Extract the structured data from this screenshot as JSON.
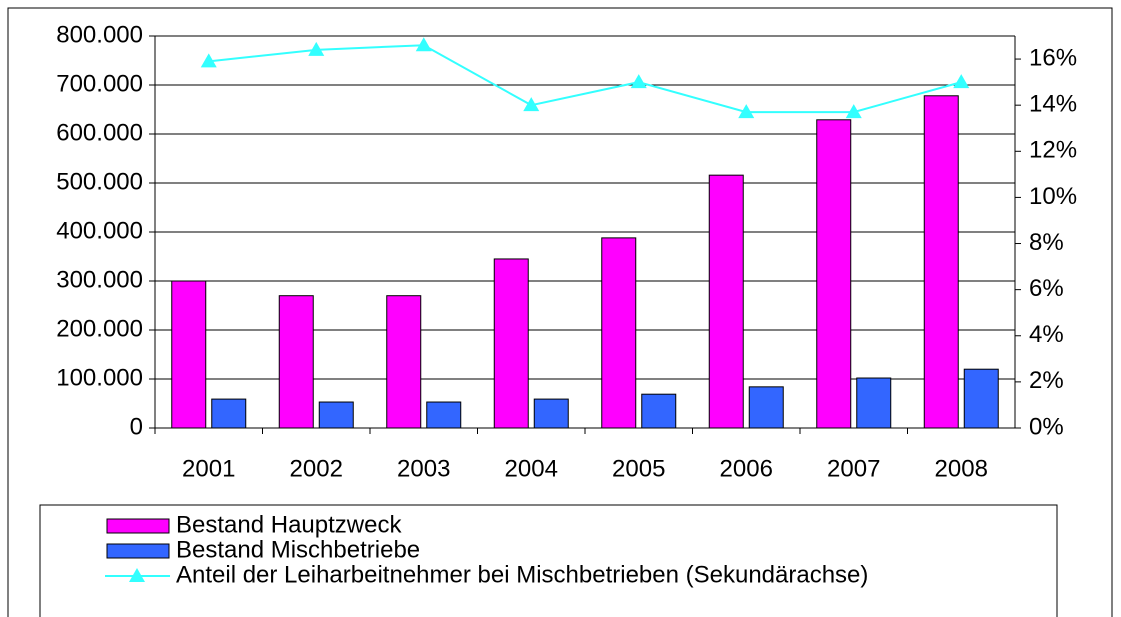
{
  "chart_data": {
    "type": "bar",
    "categories": [
      "2001",
      "2002",
      "2003",
      "2004",
      "2005",
      "2006",
      "2007",
      "2008"
    ],
    "series": [
      {
        "name": "Bestand Hauptzweck",
        "color": "#ff00ff",
        "values": [
          300000,
          270000,
          270000,
          345000,
          388000,
          516000,
          629000,
          678000
        ]
      },
      {
        "name": "Bestand Mischbetriebe",
        "color": "#3366ff",
        "values": [
          59000,
          53000,
          53000,
          59000,
          69000,
          84000,
          102000,
          120000
        ]
      },
      {
        "name": "Anteil der Leiharbeitnehmer bei Mischbetrieben (Sekundärachse)",
        "color": "#33ffff",
        "type": "line",
        "axis": "y2",
        "values": [
          15.9,
          16.4,
          16.6,
          14.0,
          15.0,
          13.7,
          13.7,
          15.0
        ]
      }
    ],
    "ylim": [
      0,
      800000
    ],
    "yticks": [
      0,
      {
        "value": 100000,
        "label": "100.000"
      },
      {
        "value": 200000,
        "label": "200.000"
      },
      {
        "value": 300000,
        "label": "300.000"
      },
      {
        "value": 400000,
        "label": "400.000"
      },
      {
        "value": 500000,
        "label": "500.000"
      },
      {
        "value": 600000,
        "label": "600.000"
      },
      {
        "value": 700000,
        "label": "700.000"
      },
      {
        "value": 800000,
        "label": "800.000"
      }
    ],
    "y2lim": [
      0,
      17
    ],
    "y2ticks": [
      {
        "value": 0,
        "label": "0%"
      },
      {
        "value": 2,
        "label": "2%"
      },
      {
        "value": 4,
        "label": "4%"
      },
      {
        "value": 6,
        "label": "6%"
      },
      {
        "value": 8,
        "label": "8%"
      },
      {
        "value": 10,
        "label": "10%"
      },
      {
        "value": 12,
        "label": "12%"
      },
      {
        "value": 14,
        "label": "14%"
      },
      {
        "value": 16,
        "label": "16%"
      }
    ],
    "grid": true,
    "legend": "bottom"
  }
}
